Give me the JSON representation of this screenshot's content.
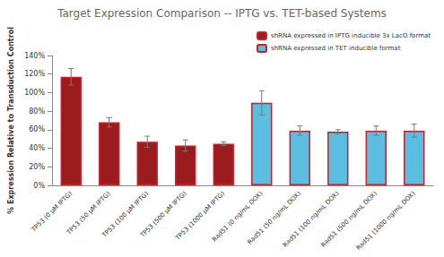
{
  "chart_data": {
    "type": "bar",
    "title": "Target Expression Comparison -- IPTG vs. TET-based Systems",
    "y_label": "% Expression Relative to Transduction Control",
    "categories": [
      "TP53 (0 µM IPTG)",
      "TP53 (50 µM IPTG)",
      "TP53 (100 µM IPTG)",
      "TP53 (500 µM IPTG)",
      "TP53 (1000 µM IPTG)",
      "Rad51 (0 ng/mL DOX)",
      "Rad51 (50 ng/mL DOX)",
      "Rad51 (100 ng/mL DOX)",
      "Rad51 (500 ng/mL DOX)",
      "Rad51 (1000 ng/mL DOX)"
    ],
    "series": [
      {
        "name": "shRNA expressed in IPTG inducible 3x LacO format",
        "color": "#9b1c1f",
        "values": [
          117,
          68,
          47,
          43,
          45,
          null,
          null,
          null,
          null,
          null
        ],
        "errors": [
          9,
          5,
          6,
          6,
          2,
          null,
          null,
          null,
          null,
          null
        ]
      },
      {
        "name": "shRNA expressed in TET inducible format",
        "color": "#5bbde0",
        "values": [
          null,
          null,
          null,
          null,
          null,
          89,
          59,
          58,
          59,
          59
        ],
        "errors": [
          null,
          null,
          null,
          null,
          null,
          13,
          5,
          2,
          5,
          7
        ]
      }
    ],
    "ylim": [
      0,
      140
    ],
    "yticks": [
      {
        "value": 0,
        "label": "0%"
      },
      {
        "value": 20,
        "label": "20%"
      },
      {
        "value": 40,
        "label": "40%"
      },
      {
        "value": 60,
        "label": "60%"
      },
      {
        "value": 80,
        "label": "80%"
      },
      {
        "value": 100,
        "label": "100%"
      },
      {
        "value": 120,
        "label": "120%"
      },
      {
        "value": 140,
        "label": "140%"
      }
    ],
    "legend": "upper right",
    "grid": false
  }
}
